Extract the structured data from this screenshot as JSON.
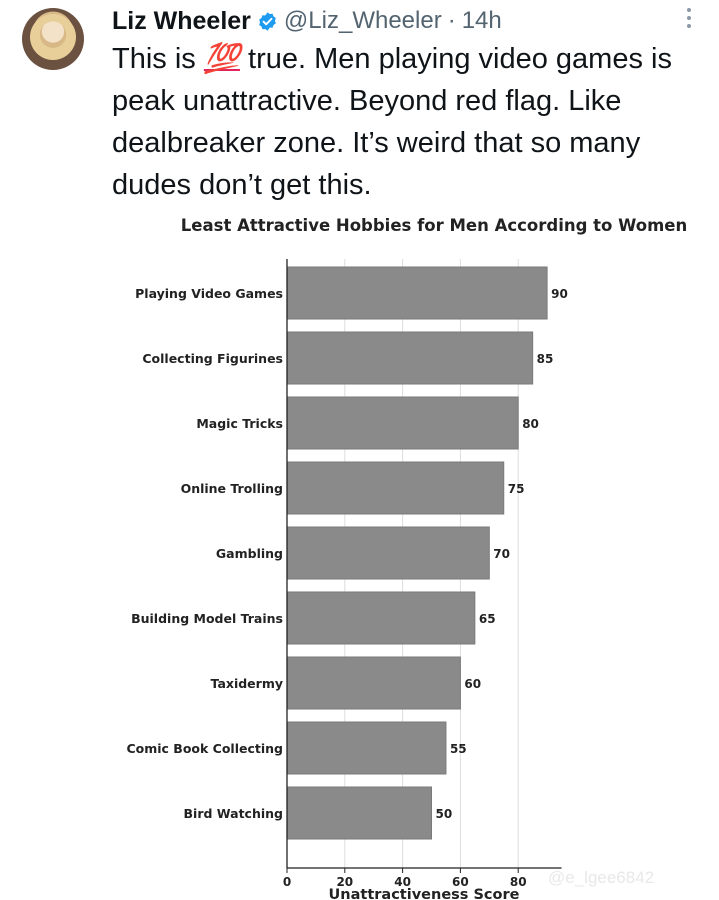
{
  "tweet": {
    "author_name": "Liz Wheeler",
    "handle": "@Liz_Wheeler",
    "separator": "·",
    "time": "14h",
    "text_before_emoji": "This is ",
    "emoji": "💯",
    "text_after_emoji": " true. Men playing video games is peak unattractive. Beyond red flag. Like dealbreaker zone. It’s weird that so many dudes don’t get this."
  },
  "icons": {
    "verified": "verified-badge-icon",
    "more": "more-options-icon",
    "avatar": "profile-avatar"
  },
  "colors": {
    "verified_blue": "#1d9bf0",
    "bar_gray": "#8a8a8a",
    "secondary_text": "#536471"
  },
  "watermark": "@e_lgee6842",
  "chart_data": {
    "type": "bar",
    "orientation": "horizontal",
    "title": "Least Attractive Hobbies for Men According to Women",
    "xlabel": "Unattractiveness Score",
    "ylabel": "",
    "categories": [
      "Playing Video Games",
      "Collecting Figurines",
      "Magic Tricks",
      "Online Trolling",
      "Gambling",
      "Building Model Trains",
      "Taxidermy",
      "Comic Book Collecting",
      "Bird Watching"
    ],
    "values": [
      90,
      85,
      80,
      75,
      70,
      65,
      60,
      55,
      50
    ],
    "data_labels": [
      "90",
      "85",
      "80",
      "75",
      "70",
      "65",
      "60",
      "55",
      "50"
    ],
    "xticks": [
      "0",
      "20",
      "40",
      "60",
      "80"
    ],
    "xlim": [
      0,
      95
    ],
    "grid": true,
    "legend": "none"
  }
}
